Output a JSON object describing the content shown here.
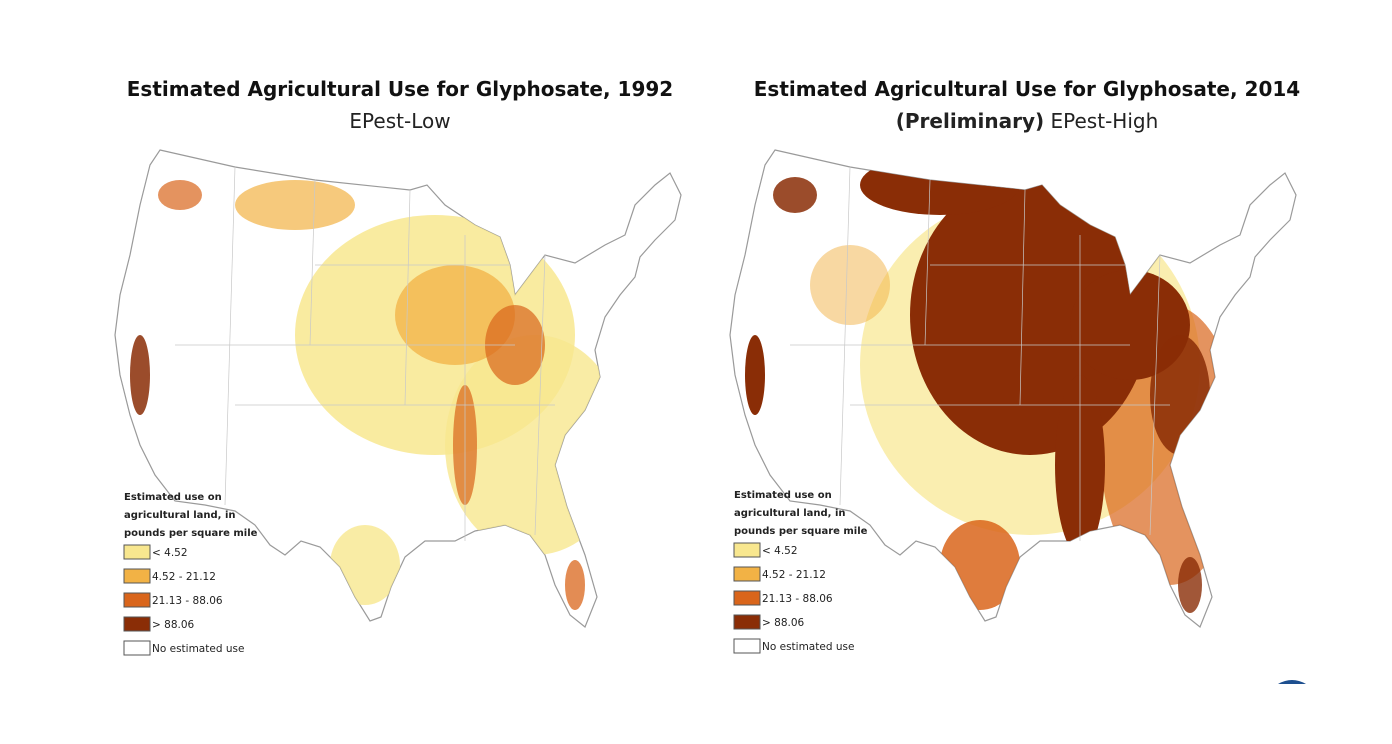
{
  "maps": [
    {
      "title": "Estimated Agricultural Use for Glyphosate, 1992",
      "subtitle": "EPest-Low",
      "legend": {
        "title_lines": [
          "Estimated use on",
          "agricultural land, in",
          "pounds per square mile"
        ],
        "items": [
          {
            "label": "< 4.52",
            "color": "#f8e78f"
          },
          {
            "label": "4.52 - 21.12",
            "color": "#f2b245"
          },
          {
            "label": "21.13 - 88.06",
            "color": "#d9651b"
          },
          {
            "label": "> 88.06",
            "color": "#8a2d06"
          },
          {
            "label": "No estimated use",
            "color": "#ffffff"
          }
        ]
      }
    },
    {
      "title": "Estimated Agricultural Use for Glyphosate, 2014",
      "subtitle_prefix": "(Preliminary)",
      "subtitle": "EPest-High",
      "legend": {
        "title_lines": [
          "Estimated use on",
          "agricultural land, in",
          "pounds per square mile"
        ],
        "items": [
          {
            "label": "< 4.52",
            "color": "#f8e78f"
          },
          {
            "label": "4.52 - 21.12",
            "color": "#f2b245"
          },
          {
            "label": "21.13 - 88.06",
            "color": "#d9651b"
          },
          {
            "label": "> 88.06",
            "color": "#8a2d06"
          },
          {
            "label": "No estimated use",
            "color": "#ffffff"
          }
        ]
      }
    }
  ]
}
